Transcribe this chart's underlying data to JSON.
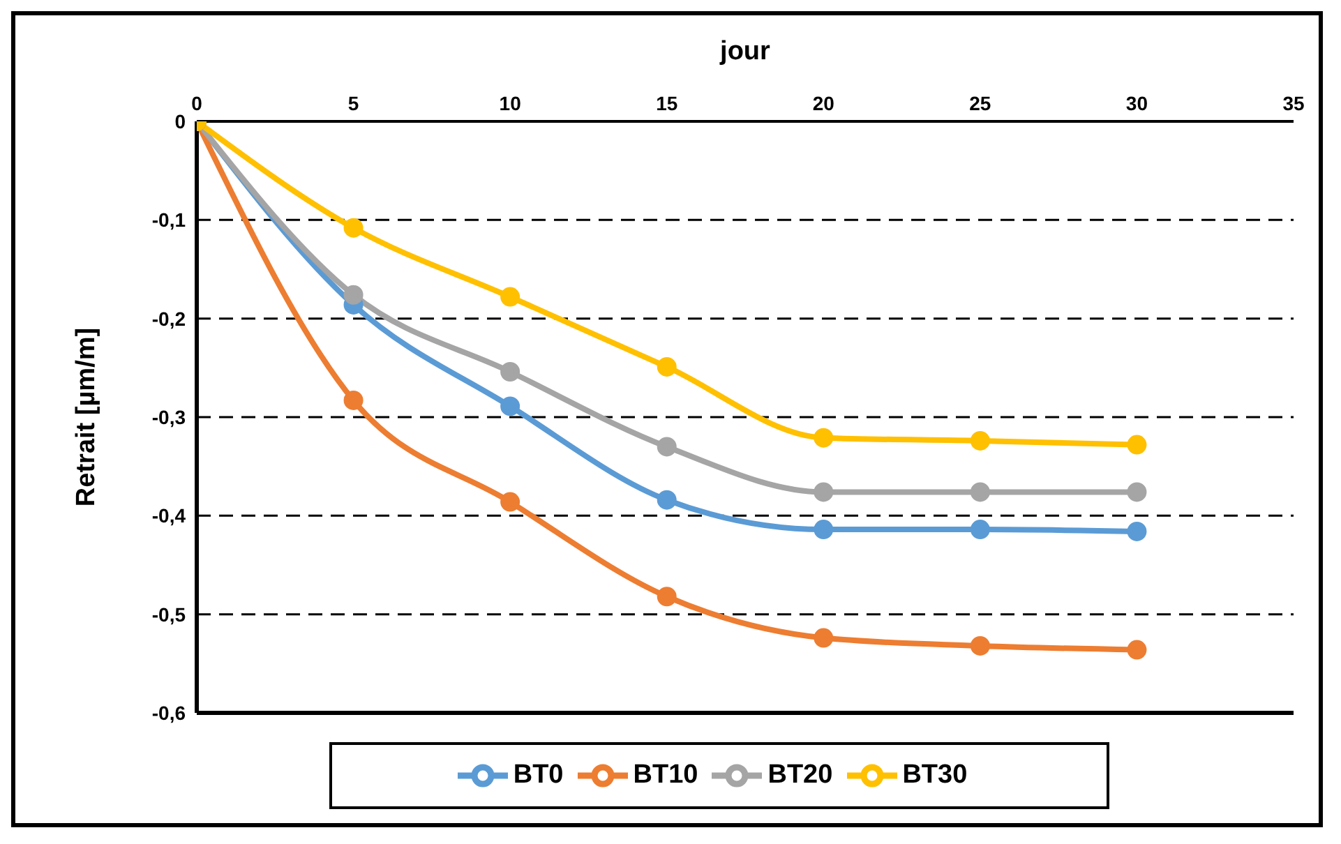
{
  "chart_data": {
    "type": "line",
    "xlabel": "jour",
    "ylabel": "Retrait [µm/m]",
    "x": [
      0,
      5,
      10,
      15,
      20,
      25,
      30
    ],
    "series": [
      {
        "name": "BT0",
        "color": "#5b9bd5",
        "values": [
          0,
          -0.186,
          -0.289,
          -0.384,
          -0.414,
          -0.414,
          -0.416
        ]
      },
      {
        "name": "BT10",
        "color": "#ed7d31",
        "values": [
          0,
          -0.283,
          -0.386,
          -0.482,
          -0.524,
          -0.532,
          -0.536
        ]
      },
      {
        "name": "BT20",
        "color": "#a5a5a5",
        "values": [
          0,
          -0.176,
          -0.254,
          -0.33,
          -0.376,
          -0.376,
          -0.376
        ]
      },
      {
        "name": "BT30",
        "color": "#ffc000",
        "values": [
          0,
          -0.108,
          -0.178,
          -0.249,
          -0.321,
          -0.324,
          -0.328
        ]
      }
    ],
    "xlim": [
      0,
      35
    ],
    "xticks": [
      0,
      5,
      10,
      15,
      20,
      25,
      30,
      35
    ],
    "ylim": [
      -0.6,
      0
    ],
    "yticks": [
      {
        "value": 0,
        "label": "0"
      },
      {
        "value": -0.1,
        "label": "-0,1"
      },
      {
        "value": -0.2,
        "label": "-0,2"
      },
      {
        "value": -0.3,
        "label": "-0,3"
      },
      {
        "value": -0.4,
        "label": "-0,4"
      },
      {
        "value": -0.5,
        "label": "-0,5"
      },
      {
        "value": -0.6,
        "label": "-0,6"
      }
    ],
    "grid": "y",
    "legend": "bottom",
    "marker": "circle",
    "line_style": "solid"
  }
}
